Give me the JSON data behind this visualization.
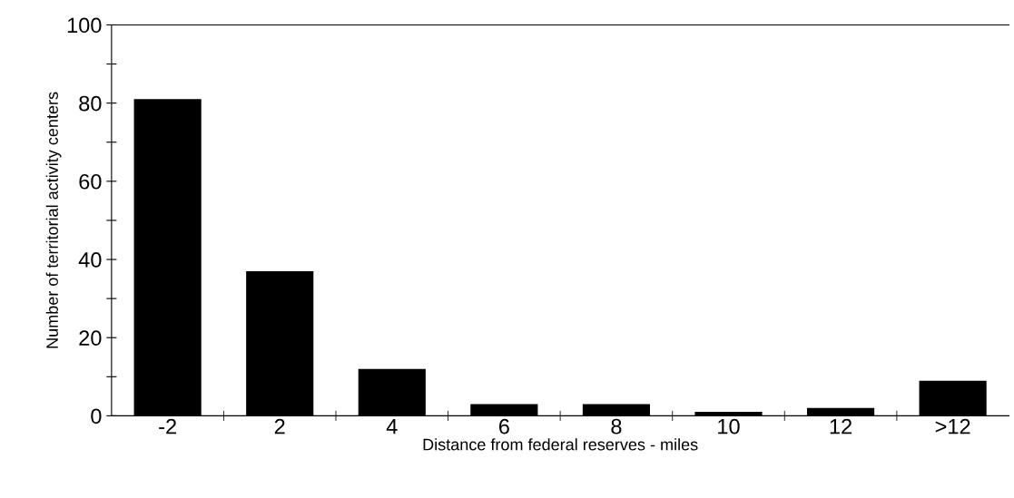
{
  "chart_data": {
    "type": "bar",
    "xlabel": "Distance from federal reserves - miles",
    "ylabel": "Number of territorial activity centers",
    "categories": [
      "-2",
      "2",
      "4",
      "6",
      "8",
      "10",
      "12",
      ">12"
    ],
    "values": [
      81,
      37,
      12,
      3,
      3,
      1,
      2,
      9
    ],
    "color": "#000000",
    "ylim": [
      0,
      100
    ],
    "yticks": [
      0,
      {
        "value": 10,
        "label": null
      },
      20,
      {
        "value": 30,
        "label": null
      },
      40,
      {
        "value": 50,
        "label": null
      },
      60,
      {
        "value": 70,
        "label": null
      },
      80,
      {
        "value": 90,
        "label": null
      },
      100
    ],
    "grid": false
  }
}
